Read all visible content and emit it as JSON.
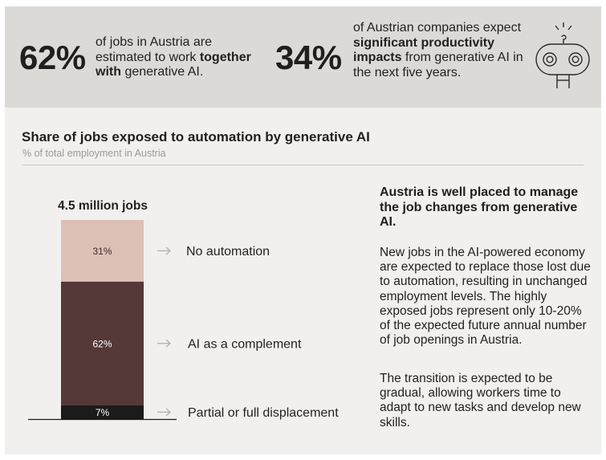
{
  "stats": [
    {
      "value": "62%",
      "pre": "of jobs in Austria are estimated to work ",
      "bold": "together with",
      "post": " generative AI."
    },
    {
      "value": "34%",
      "pre": "of Austrian companies expect ",
      "bold": "significant productivity impacts",
      "post": " from generative AI in the next five years."
    }
  ],
  "icon": "robot-icon",
  "chart_data": {
    "type": "bar",
    "title": "Share of jobs exposed to automation by generative AI",
    "subtitle": "% of total employment in Austria",
    "bar_label": "4.5 million jobs",
    "stacked": true,
    "segments": [
      {
        "name": "No automation",
        "value": 31,
        "label": "31%",
        "color": "#dcc0b6",
        "text_color": "#3a2a26"
      },
      {
        "name": "AI as a complement",
        "value": 62,
        "label": "62%",
        "color": "#553838",
        "text_color": "#ffffff"
      },
      {
        "name": "Partial or full displacement",
        "value": 7,
        "label": "7%",
        "color": "#1b1b1b",
        "text_color": "#ffffff"
      }
    ]
  },
  "side": {
    "heading": "Austria is well placed to manage the job changes from generative AI.",
    "p1": "New jobs in the AI-powered economy are expected to replace those lost due to automation, resulting in unchanged employment levels. The highly exposed jobs represent only 10-20% of the expected future annual number of job openings in Austria.",
    "p2": "The transition is expected to be gradual, allowing workers time to adapt to new tasks and develop new skills."
  }
}
